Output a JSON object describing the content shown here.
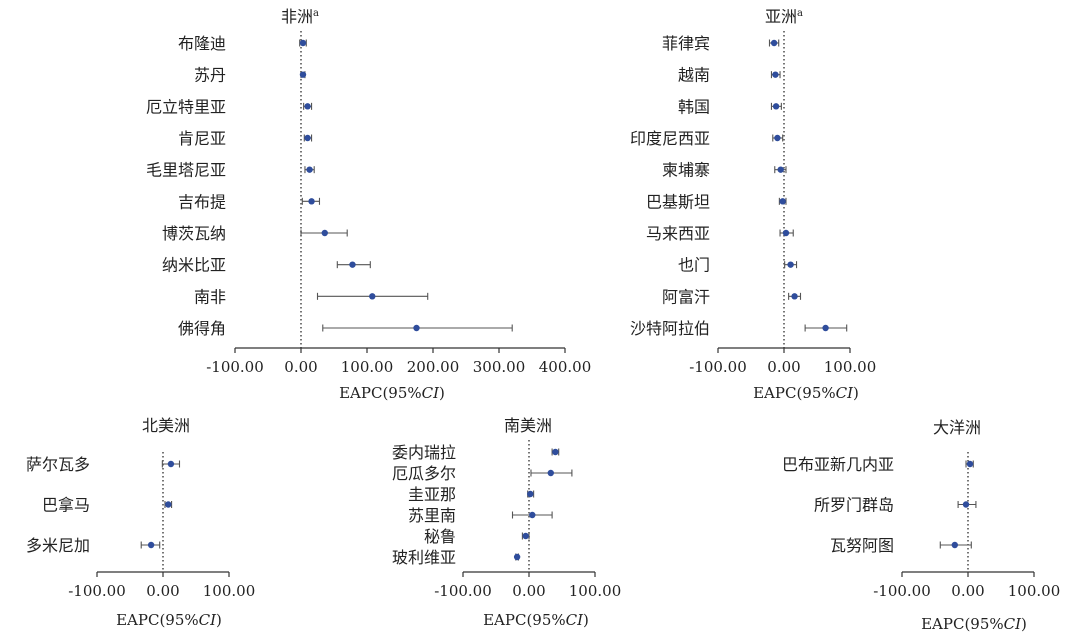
{
  "chart_data": [
    {
      "type": "forest",
      "title": "非洲",
      "title_sup": "a",
      "xlabel": "EAPC(95%",
      "xlabel_italic": "CI",
      "xlabel_close": ")",
      "xlim": [
        -100,
        400
      ],
      "xticks": [
        "-100.00",
        "0.00",
        "100.00",
        "200.00",
        "300.00",
        "400.00"
      ],
      "reference_line": 0,
      "categories": [
        "布隆迪",
        "苏丹",
        "厄立特里亚",
        "肯尼亚",
        "毛里塔尼亚",
        "吉布提",
        "博茨瓦纳",
        "纳米比亚",
        "南非",
        "佛得角"
      ],
      "estimate": [
        3,
        3,
        10,
        10,
        13,
        16,
        36,
        78,
        108,
        175
      ],
      "ci_low": [
        -2,
        0,
        4,
        5,
        6,
        2,
        0,
        55,
        25,
        33
      ],
      "ci_high": [
        8,
        6,
        16,
        16,
        20,
        28,
        70,
        105,
        192,
        320
      ]
    },
    {
      "type": "forest",
      "title": "亚洲",
      "title_sup": "a",
      "xlabel": "EAPC(95%",
      "xlabel_italic": "CI",
      "xlabel_close": ")",
      "xlim": [
        -100,
        100
      ],
      "xticks": [
        "-100.00",
        "0.00",
        "100.00"
      ],
      "reference_line": 0,
      "categories": [
        "菲律宾",
        "越南",
        "韩国",
        "印度尼西亚",
        "柬埔寨",
        "巴基斯坦",
        "马来西亚",
        "也门",
        "阿富汗",
        "沙特阿拉伯"
      ],
      "estimate": [
        -15,
        -13,
        -12,
        -10,
        -5,
        -2,
        3,
        10,
        16,
        63
      ],
      "ci_low": [
        -22,
        -19,
        -19,
        -17,
        -14,
        -7,
        -6,
        1,
        7,
        32
      ],
      "ci_high": [
        -8,
        -6,
        -4,
        -2,
        3,
        3,
        14,
        19,
        25,
        95
      ]
    },
    {
      "type": "forest",
      "title": "北美洲",
      "xlabel": "EAPC(95%",
      "xlabel_italic": "CI",
      "xlabel_close": ")",
      "xlim": [
        -100,
        100
      ],
      "xticks": [
        "-100.00",
        "0.00",
        "100.00"
      ],
      "reference_line": 0,
      "categories": [
        "萨尔瓦多",
        "巴拿马",
        "多米尼加"
      ],
      "estimate": [
        12,
        8,
        -18
      ],
      "ci_low": [
        -1,
        3,
        -33
      ],
      "ci_high": [
        25,
        13,
        -5
      ]
    },
    {
      "type": "forest",
      "title": "南美洲",
      "xlabel": "EAPC(95%",
      "xlabel_italic": "CI",
      "xlabel_close": ")",
      "xlim": [
        -100,
        100
      ],
      "xticks": [
        "-100.00",
        "0.00",
        "100.00"
      ],
      "reference_line": 0,
      "categories": [
        "委内瑞拉",
        "厄瓜多尔",
        "圭亚那",
        "苏里南",
        "秘鲁",
        "玻利维亚"
      ],
      "estimate": [
        40,
        33,
        2,
        5,
        -5,
        -18
      ],
      "ci_low": [
        35,
        3,
        -2,
        -25,
        -10,
        -20
      ],
      "ci_high": [
        45,
        65,
        7,
        35,
        0,
        -16
      ]
    },
    {
      "type": "forest",
      "title": "大洋洲",
      "xlabel": "EAPC(95%",
      "xlabel_italic": "CI",
      "xlabel_close": ")",
      "xlim": [
        -100,
        100
      ],
      "xticks": [
        "-100.00",
        "0.00",
        "100.00"
      ],
      "reference_line": 0,
      "categories": [
        "巴布亚新几内亚",
        "所罗门群岛",
        "瓦努阿图"
      ],
      "estimate": [
        3,
        -3,
        -20
      ],
      "ci_low": [
        -3,
        -15,
        -42
      ],
      "ci_high": [
        8,
        12,
        5
      ]
    }
  ],
  "style": {
    "point_color": "#2f4d9c",
    "ci_color": "#555555",
    "axis_color": "#333333",
    "reference_line_color": "#555555",
    "reference_line_style": "dotted"
  }
}
